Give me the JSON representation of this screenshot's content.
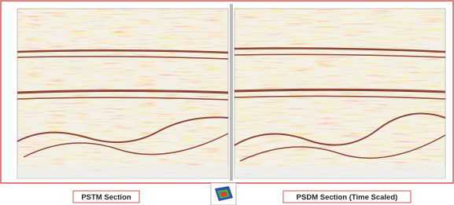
{
  "panels": [
    {
      "label": "PSTM Section"
    },
    {
      "label": "PSDM Section (Time Scaled)"
    }
  ]
}
